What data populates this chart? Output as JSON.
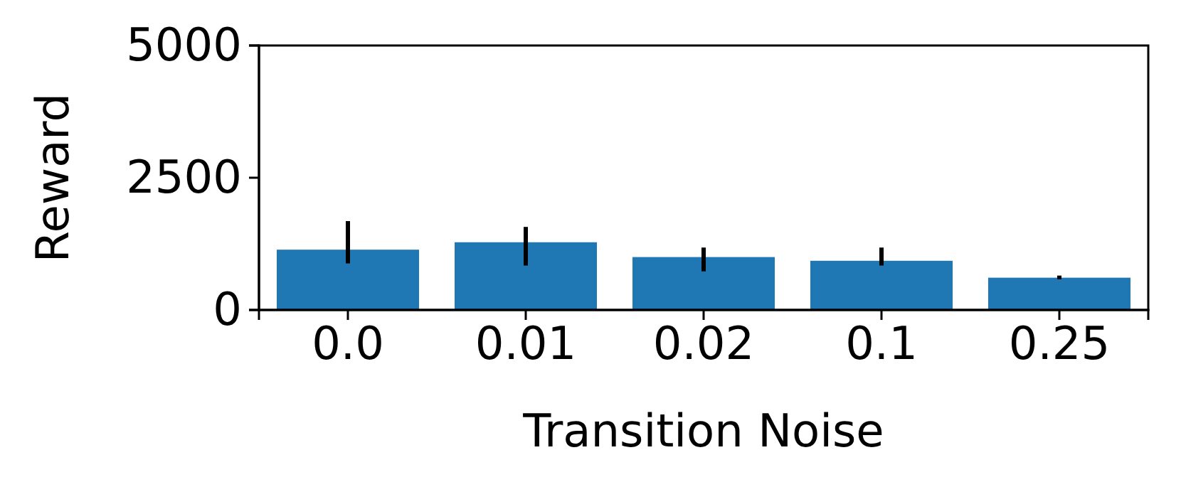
{
  "chart_data": {
    "type": "bar",
    "xlabel": "Transition Noise",
    "ylabel": "Reward",
    "categories": [
      "0.0",
      "0.01",
      "0.02",
      "0.1",
      "0.25"
    ],
    "values": [
      1140,
      1280,
      1000,
      930,
      610
    ],
    "errors": [
      [
        880,
        1680
      ],
      [
        840,
        1570
      ],
      [
        730,
        1180
      ],
      [
        840,
        1180
      ],
      [
        580,
        650
      ]
    ],
    "color": "#1f77b4",
    "ylim": [
      0,
      5000
    ],
    "yticks": [
      0,
      2500,
      5000
    ],
    "grid": false
  }
}
